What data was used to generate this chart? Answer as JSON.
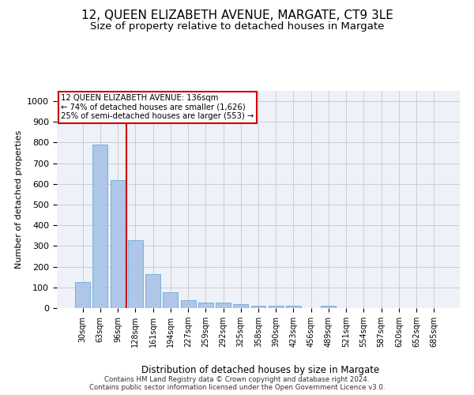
{
  "title": "12, QUEEN ELIZABETH AVENUE, MARGATE, CT9 3LE",
  "subtitle": "Size of property relative to detached houses in Margate",
  "xlabel": "Distribution of detached houses by size in Margate",
  "ylabel": "Number of detached properties",
  "footnote1": "Contains HM Land Registry data © Crown copyright and database right 2024.",
  "footnote2": "Contains public sector information licensed under the Open Government Licence v3.0.",
  "annotation_line1": "12 QUEEN ELIZABETH AVENUE: 136sqm",
  "annotation_line2": "← 74% of detached houses are smaller (1,626)",
  "annotation_line3": "25% of semi-detached houses are larger (553) →",
  "bar_labels": [
    "30sqm",
    "63sqm",
    "96sqm",
    "128sqm",
    "161sqm",
    "194sqm",
    "227sqm",
    "259sqm",
    "292sqm",
    "325sqm",
    "358sqm",
    "390sqm",
    "423sqm",
    "456sqm",
    "489sqm",
    "521sqm",
    "554sqm",
    "587sqm",
    "620sqm",
    "652sqm",
    "685sqm"
  ],
  "bar_values": [
    125,
    790,
    620,
    330,
    163,
    78,
    40,
    28,
    25,
    18,
    12,
    10,
    10,
    0,
    10,
    0,
    0,
    0,
    0,
    0,
    0
  ],
  "bar_color": "#aec6e8",
  "bar_edgecolor": "#5a9fd4",
  "vline_color": "#cc0000",
  "ylim": [
    0,
    1050
  ],
  "yticks": [
    0,
    100,
    200,
    300,
    400,
    500,
    600,
    700,
    800,
    900,
    1000
  ],
  "grid_color": "#cccccc",
  "bg_color": "#eef2f8",
  "box_edgecolor": "#cc0000",
  "title_fontsize": 11,
  "subtitle_fontsize": 9.5
}
